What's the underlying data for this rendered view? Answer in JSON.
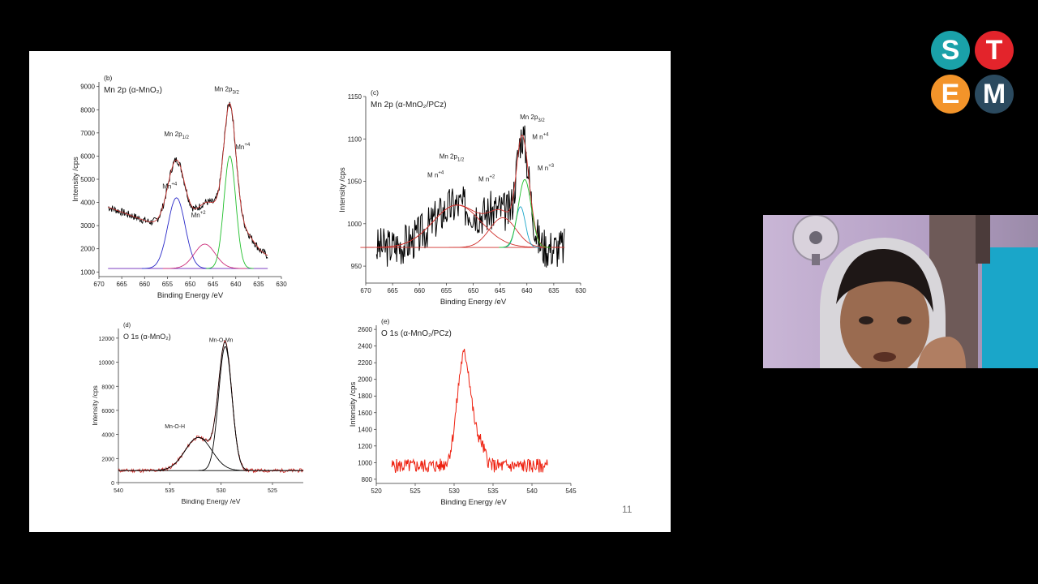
{
  "slide": {
    "page_number": "11",
    "colors": {
      "raw": "#000000",
      "fit": "#d0312d",
      "baseline": "#7d3fc0",
      "peak1": "#2929c8",
      "peak2": "#cc2d7a",
      "peak3": "#1fbf2a",
      "peak4": "#1aa6c9",
      "raw_e": "#ee2211"
    }
  },
  "logo": {
    "letters": [
      "S",
      "T",
      "E",
      "M"
    ],
    "colors": [
      "#1aa1a9",
      "#e3242b",
      "#f3942a",
      "#2b4a5f"
    ]
  },
  "webcam": {
    "description_icon": "webcam-feed"
  },
  "chart_data": [
    {
      "type": "line",
      "panel": "(b)",
      "title": "Mn 2p (α-MnO₂)",
      "xlabel": "Binding Energy /eV",
      "ylabel": "Intensity /cps",
      "xlim": [
        670,
        630
      ],
      "ylim": [
        800,
        9200
      ],
      "x_ticks": [
        670,
        665,
        660,
        655,
        650,
        645,
        640,
        635,
        630
      ],
      "y_ticks": [
        1000,
        2000,
        3000,
        4000,
        5000,
        6000,
        7000,
        8000,
        9000
      ],
      "baseline": 1150,
      "raw_range": [
        668,
        633
      ],
      "raw_start": 3800,
      "raw_end": 1400,
      "peaks": [
        {
          "center": 653,
          "amp": 3050,
          "width": 1.9,
          "color": "peak1"
        },
        {
          "center": 646.8,
          "amp": 1050,
          "width": 2.3,
          "color": "peak2"
        },
        {
          "center": 641.3,
          "amp": 4850,
          "width": 1.3,
          "color": "peak3"
        },
        {
          "center": 641.0,
          "amp": 1500,
          "width": 4.5,
          "color": "none"
        }
      ],
      "annotations": [
        {
          "text": "Mn 2p",
          "sub": "1/2",
          "x": 653,
          "y": 6850
        },
        {
          "text": "Mn 2p",
          "sub": "3/2",
          "x": 642,
          "y": 8800
        },
        {
          "text": "Mn",
          "sup": "+4",
          "x": 654.5,
          "y": 4600
        },
        {
          "text": "Mn",
          "sup": "+2",
          "x": 648.2,
          "y": 3350
        },
        {
          "text": "Mn",
          "sup": "+4",
          "x": 638.5,
          "y": 6300
        }
      ]
    },
    {
      "type": "line",
      "panel": "(c)",
      "title": "Mn 2p (α-MnO₂/PCz)",
      "xlabel": "Binding Energy /eV",
      "ylabel": "Intensity /cps",
      "xlim": [
        670,
        630
      ],
      "ylim": [
        930,
        1150
      ],
      "x_ticks": [
        670,
        665,
        660,
        655,
        650,
        645,
        640,
        635,
        630
      ],
      "y_ticks": [
        950,
        1000,
        1050,
        1100,
        1150
      ],
      "baseline": 972,
      "raw_range": [
        668,
        633
      ],
      "peaks": [
        {
          "center": 653,
          "amp": 50,
          "width": 4.5,
          "color": "fit"
        },
        {
          "center": 644.5,
          "amp": 35,
          "width": 2.5,
          "color": "fit"
        },
        {
          "center": 641.2,
          "amp": 48,
          "width": 0.9,
          "color": "peak4"
        },
        {
          "center": 640.4,
          "amp": 80,
          "width": 1.2,
          "color": "peak3"
        }
      ],
      "annotations": [
        {
          "text": "Mn 2p",
          "sub": "1/2",
          "x": 654,
          "y": 1077,
          "color": "fit"
        },
        {
          "text": "Mn 2p",
          "sub": "3/2",
          "x": 639,
          "y": 1123,
          "color": "fit"
        },
        {
          "text": "M n",
          "sup": "+4",
          "x": 657,
          "y": 1055
        },
        {
          "text": "M n",
          "sup": "+2",
          "x": 647.5,
          "y": 1050
        },
        {
          "text": "M n",
          "sup": "+4",
          "x": 637.5,
          "y": 1100
        },
        {
          "text": "M n",
          "sup": "+3",
          "x": 636.5,
          "y": 1063
        }
      ]
    },
    {
      "type": "line",
      "panel": "(d)",
      "title": "O 1s (α-MnO₂)",
      "xlabel": "Binding Energy /eV",
      "ylabel": "Intensity /cps",
      "xlim": [
        540,
        522
      ],
      "ylim": [
        0,
        12800
      ],
      "x_ticks": [
        540,
        535,
        530,
        525
      ],
      "x_tick_labels": [
        "540",
        "535",
        "530",
        "525"
      ],
      "y_ticks": [
        0,
        2000,
        4000,
        6000,
        8000,
        10000,
        12000
      ],
      "baseline": 1000,
      "raw_range": [
        540,
        522
      ],
      "peaks": [
        {
          "center": 532.2,
          "amp": 2750,
          "width": 1.3,
          "color": "raw"
        },
        {
          "center": 529.6,
          "amp": 10300,
          "width": 0.65,
          "color": "raw"
        }
      ],
      "annotations": [
        {
          "text": "Mn-O-H",
          "x": 534.5,
          "y": 4500
        },
        {
          "text": "Mn-O-Mn",
          "x": 530,
          "y": 11700
        }
      ]
    },
    {
      "type": "line",
      "panel": "(e)",
      "title": "O 1s (α-MnO₂/PCz)",
      "xlabel": "Binding Energy /eV",
      "ylabel": "Intensity /cps",
      "xlim": [
        520,
        545
      ],
      "ylim": [
        750,
        2650
      ],
      "x_ticks": [
        520,
        525,
        530,
        535,
        540,
        545
      ],
      "y_ticks": [
        800,
        1000,
        1200,
        1400,
        1600,
        1800,
        2000,
        2200,
        2400,
        2600
      ],
      "baseline": 960,
      "raw_range": [
        522,
        542
      ],
      "peaks": [
        {
          "center": 531.3,
          "amp": 1340,
          "width": 0.9,
          "color": "raw_e"
        },
        {
          "center": 533.4,
          "amp": 220,
          "width": 0.6,
          "color": "raw_e"
        }
      ],
      "annotations": []
    }
  ]
}
